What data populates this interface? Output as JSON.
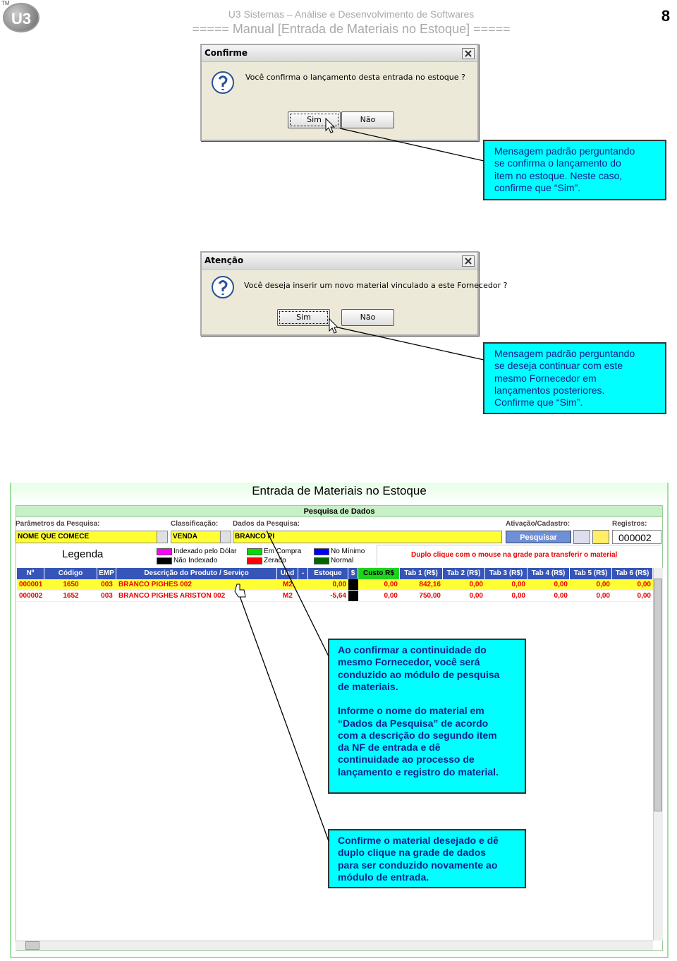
{
  "header": {
    "logo": "U3",
    "logo_tm": "TM",
    "company": "U3 Sistemas – Análise e Desenvolvimento de Softwares",
    "manual": "===== Manual [Entrada de Materiais no Estoque] =====",
    "page": "8"
  },
  "dialogs": [
    {
      "title": "Confirme",
      "message": "Você confirma o lançamento desta entrada no estoque ?",
      "buttons": [
        "Sim",
        "Não"
      ]
    },
    {
      "title": "Atenção",
      "message": "Você deseja inserir um novo material vinculado a este Fornecedor ?",
      "buttons": [
        "Sim",
        "Não"
      ]
    }
  ],
  "callouts": [
    {
      "paragraphs": [
        [
          "Mensagem padrão perguntando",
          "se confirma o lançamento do",
          "item no estoque. Neste caso,",
          "confirme que “Sim”."
        ]
      ]
    },
    {
      "paragraphs": [
        [
          "Mensagem padrão perguntando",
          "se deseja continuar com este",
          "mesmo Fornecedor em",
          "lançamentos posteriores.",
          "Confirme que “Sim”."
        ]
      ]
    },
    {
      "paragraphs": [
        [
          "Ao confirmar a continuidade do",
          "mesmo Fornecedor, você será",
          "conduzido ao módulo de pesquisa",
          "de materiais."
        ],
        [
          "Informe o nome do material em",
          "“Dados da Pesquisa” de acordo",
          "com a descrição do segundo item",
          "da NF de entrada e dê",
          "continuidade ao processo de",
          "lançamento e registro do material."
        ]
      ]
    },
    {
      "paragraphs": [
        [
          "Confirme o material desejado e dê",
          "duplo clique na grade de dados",
          "para ser conduzido novamente ao",
          "módulo de entrada."
        ]
      ]
    }
  ],
  "window": {
    "title": "Entrada de Materiais no Estoque",
    "section": "Pesquisa de Dados",
    "labels": [
      "Parâmetros da Pesquisa:",
      "Classificação:",
      "Dados da Pesquisa:",
      "Ativação/Cadastro:",
      "Registros:"
    ],
    "fields": [
      "NOME QUE COMECE",
      "VENDA",
      "BRANCO PI"
    ],
    "search_button": "Pesquisar",
    "records": "000002",
    "legend": {
      "title": "Legenda",
      "items": [
        {
          "label": "Indexado pelo Dólar",
          "color": "#ff00ff"
        },
        {
          "label": "Não Indexado",
          "color": "#000000"
        },
        {
          "label": "Em Compra",
          "color": "#00dd00"
        },
        {
          "label": "Zerado",
          "color": "#ff0000"
        },
        {
          "label": "No Mínimo",
          "color": "#0000ff"
        },
        {
          "label": "Normal",
          "color": "#006600"
        }
      ]
    },
    "hint": "Duplo clique com o mouse na grade para transferir o material",
    "columns": [
      "Nº",
      "Código",
      "EMP",
      "Descrição do Produto / Serviço",
      "Und",
      "-",
      "Estoque",
      "$",
      "Custo R$",
      "Tab 1 (R$)",
      "Tab 2 (R$)",
      "Tab 3 (R$)",
      "Tab 4 (R$)",
      "Tab 5 (R$)",
      "Tab 6 (R$)"
    ],
    "rows": [
      [
        "000001",
        "1650",
        "003",
        "BRANCO PIGHES 002",
        "M2",
        null,
        "0,00",
        null,
        "0,00",
        "842,16",
        "0,00",
        "0,00",
        "0,00",
        "0,00",
        "0,00"
      ],
      [
        "000002",
        "1652",
        "003",
        "BRANCO PIGHES ARISTON 002",
        "M2",
        null,
        "-5,64",
        null,
        "0,00",
        "750,00",
        "0,00",
        "0,00",
        "0,00",
        "0,00",
        "0,00"
      ]
    ]
  }
}
